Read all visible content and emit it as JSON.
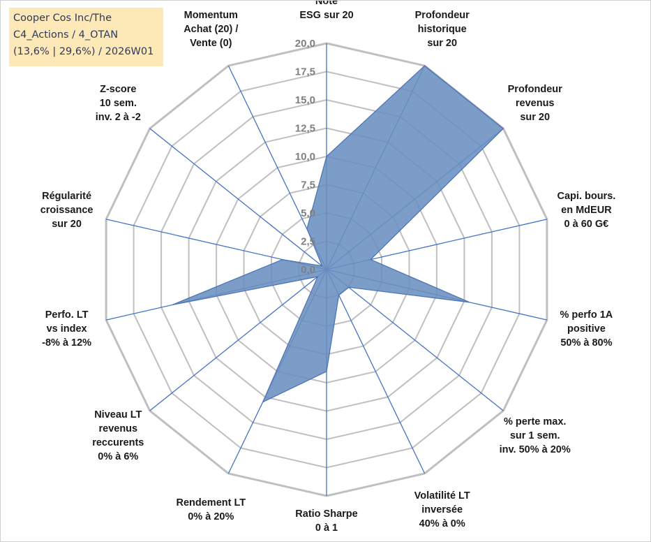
{
  "title_box": {
    "line1": "Cooper Cos Inc/The",
    "line2": "C4_Actions / 4_OTAN",
    "line3": "(13,6% | 29,6%) / 2026W01"
  },
  "chart_data": {
    "type": "radar",
    "range": [
      0,
      20
    ],
    "ticks": [
      "0,0",
      "2,5",
      "5,0",
      "7,5",
      "10,0",
      "12,5",
      "15,0",
      "17,5",
      "20,0"
    ],
    "tick_values": [
      0,
      2.5,
      5,
      7.5,
      10,
      12.5,
      15,
      17.5,
      20
    ],
    "grid": true,
    "colors": {
      "fill": "#6a8fbf",
      "stroke": "#4a72b4",
      "axis": "#4472c4",
      "grid": "#bfbfbf"
    },
    "axes": [
      {
        "label": [
          "Note",
          "ESG sur 20"
        ],
        "value": 10
      },
      {
        "label": [
          "Profondeur",
          "historique",
          "sur 20"
        ],
        "value": 20
      },
      {
        "label": [
          "Profondeur",
          "revenus",
          "sur 20"
        ],
        "value": 20
      },
      {
        "label": [
          "Capi. bours.",
          "en MdEUR",
          "0 à 60 G€"
        ],
        "value": 4
      },
      {
        "label": [
          "% perfo 1A",
          "positive",
          "50% à 80%"
        ],
        "value": 13
      },
      {
        "label": [
          "% perte max.",
          "sur 1 sem.",
          "inv. 50% à 20%"
        ],
        "value": 2.5
      },
      {
        "label": [
          "Volatilité LT",
          "inversée",
          "40% à 0%"
        ],
        "value": 2.5
      },
      {
        "label": [
          "Ratio Sharpe",
          "0 à 1"
        ],
        "value": 9
      },
      {
        "label": [
          "Rendement LT",
          "0% à 20%"
        ],
        "value": 13
      },
      {
        "label": [
          "Niveau LT",
          "revenus",
          "reccurents",
          "0% à 6%"
        ],
        "value": 1
      },
      {
        "label": [
          "Perfo. LT",
          "vs index",
          "-8% à 12%"
        ],
        "value": 14
      },
      {
        "label": [
          "Régularité",
          "croissance",
          "sur 20"
        ],
        "value": 4
      },
      {
        "label": [
          "Z-score",
          "10 sem.",
          "inv. 2 à -2"
        ],
        "value": 0.5
      },
      {
        "label": [
          "Momentum",
          "Achat (20) /",
          "Vente (0)"
        ],
        "value": 4
      }
    ]
  }
}
